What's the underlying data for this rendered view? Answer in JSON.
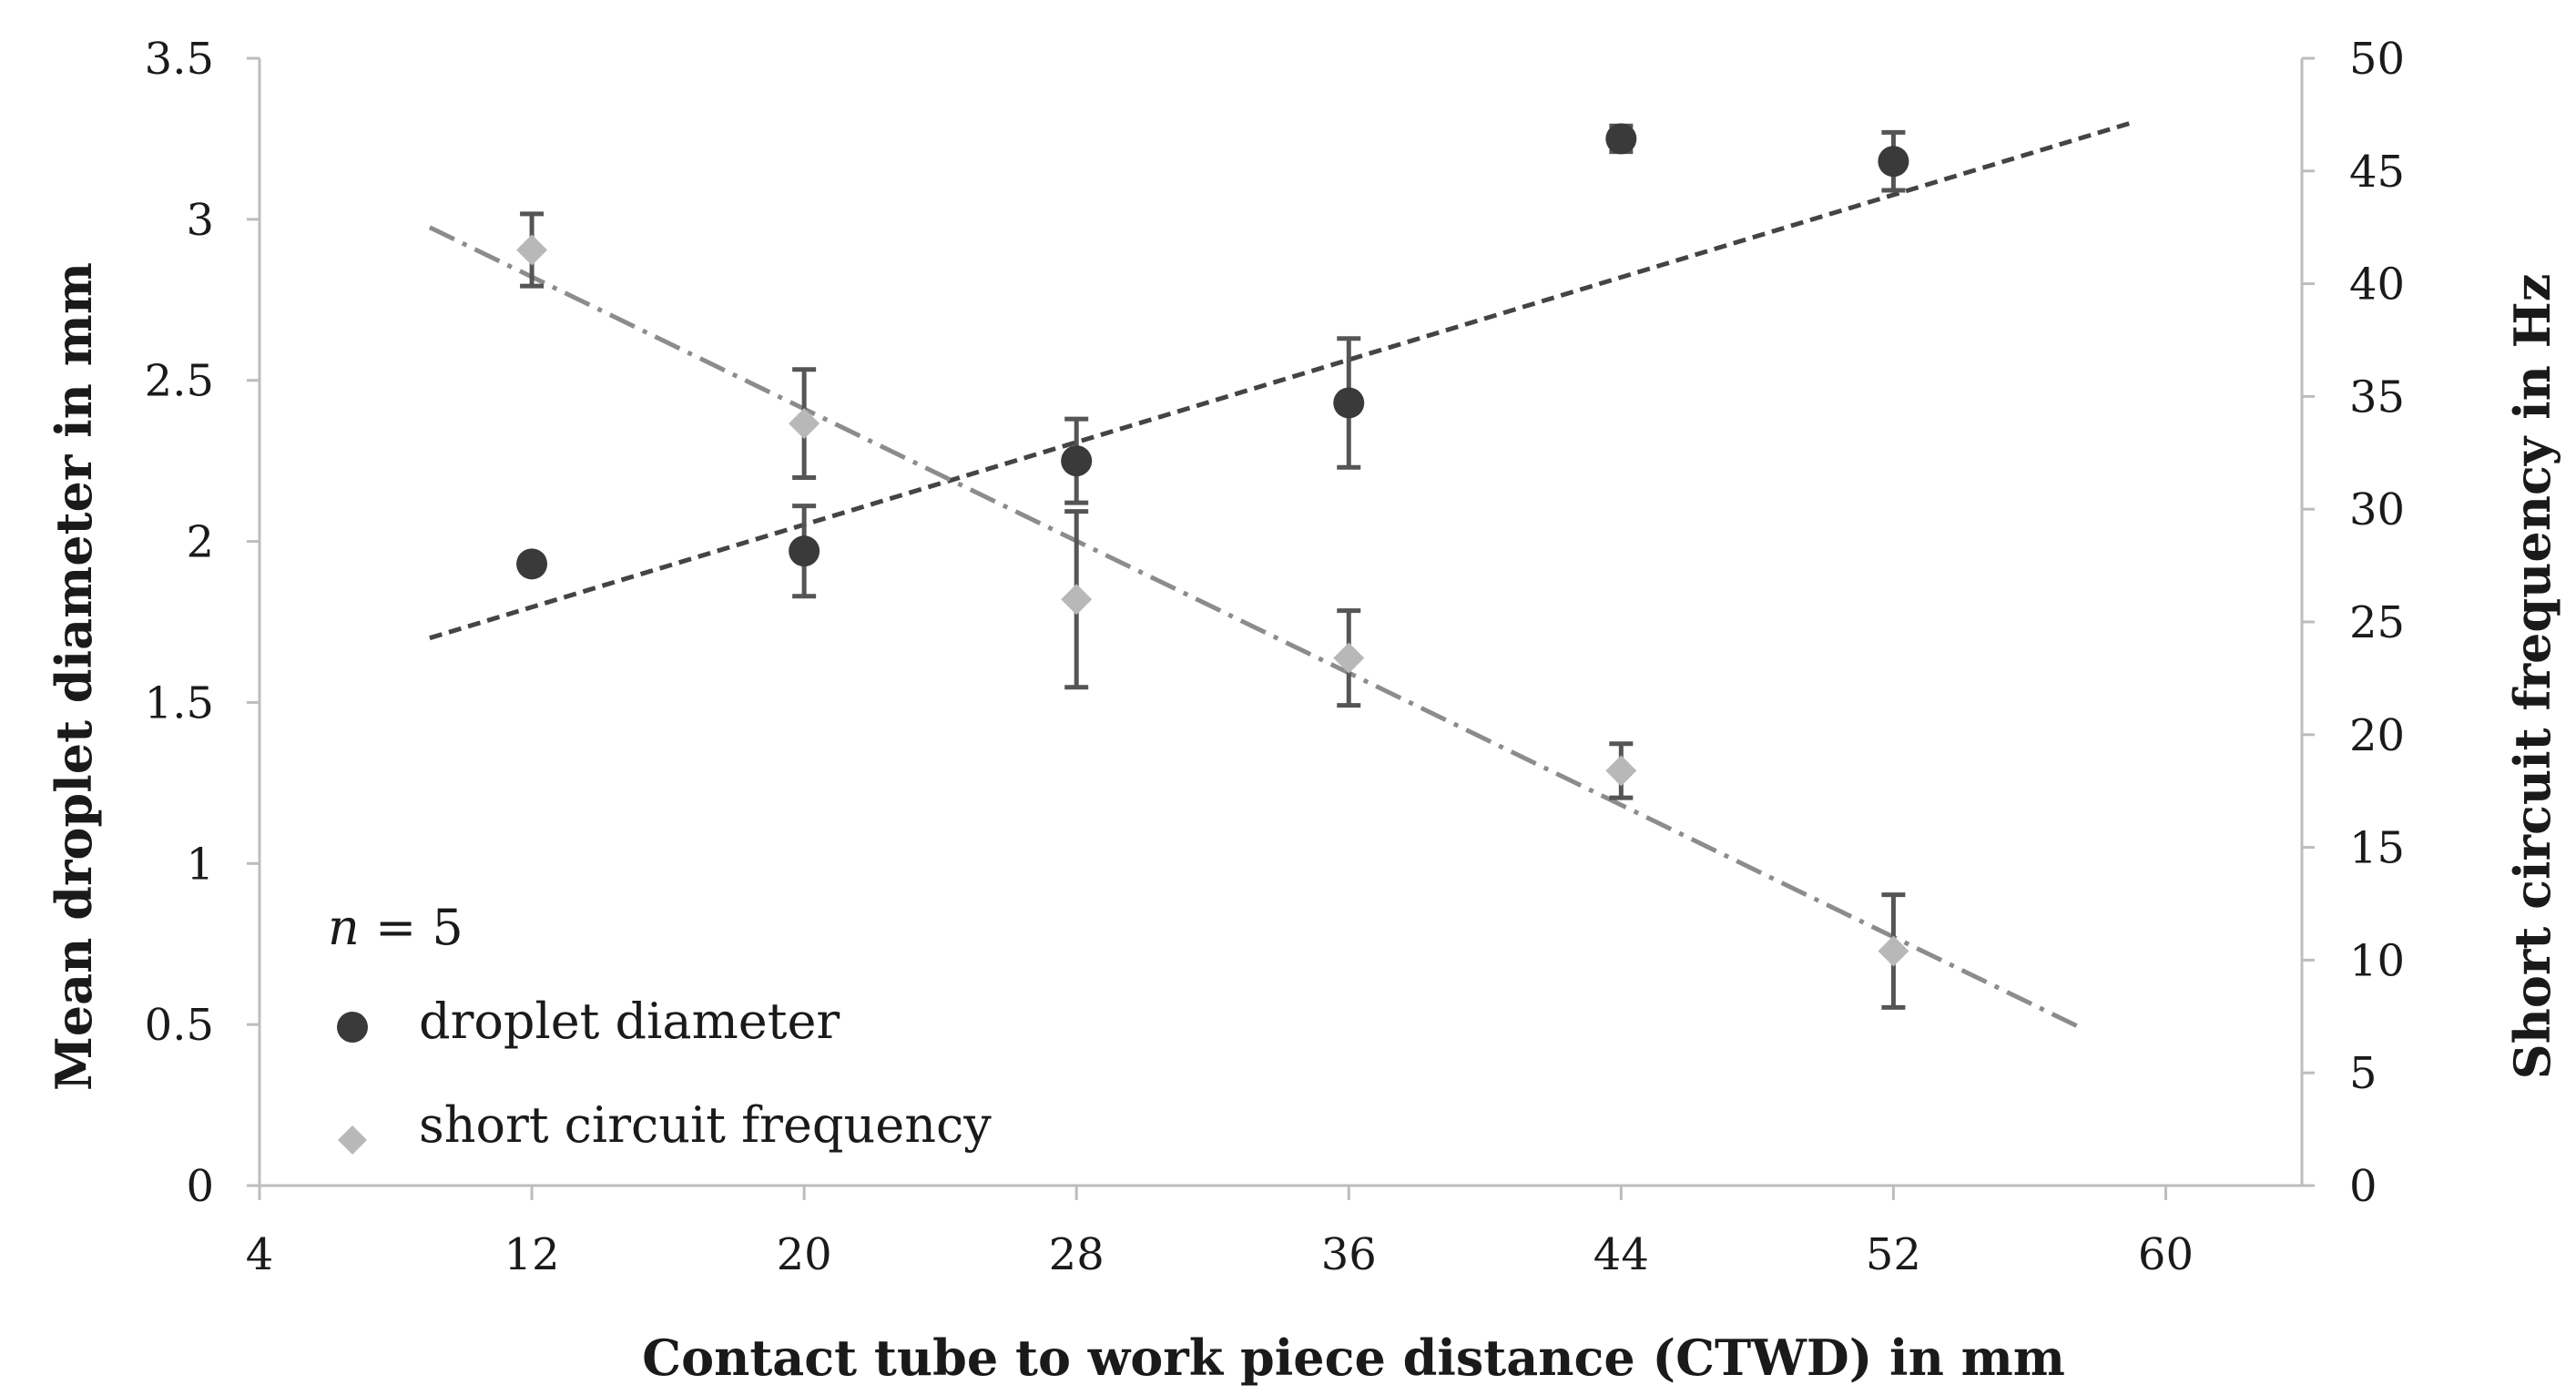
{
  "chart_data": {
    "type": "scatter",
    "title": "",
    "xlabel": "Contact tube to work piece distance (CTWD) in mm",
    "ylabel_left": "Mean droplet diameter in mm",
    "ylabel_right": "Short circuit frequency in Hz",
    "x_ticks": [
      "4",
      "12",
      "20",
      "28",
      "36",
      "44",
      "52",
      "60"
    ],
    "y_left_ticks": [
      "0",
      "0.5",
      "1",
      "1.5",
      "2",
      "2.5",
      "3",
      "3.5"
    ],
    "y_right_ticks": [
      "0",
      "5",
      "10",
      "15",
      "20",
      "25",
      "30",
      "35",
      "40",
      "45",
      "50"
    ],
    "xlim": [
      4,
      64
    ],
    "ylim_left": [
      0,
      3.5
    ],
    "ylim_right": [
      0,
      50
    ],
    "grid": false,
    "legend_position": "bottom-left",
    "annotation": {
      "italic": "n",
      "rest": " = 5"
    },
    "series": [
      {
        "name": "droplet diameter",
        "axis": "left",
        "marker": "circle",
        "color": "#3a3a3a",
        "x": [
          12,
          20,
          28,
          36,
          44,
          52
        ],
        "y": [
          1.93,
          1.97,
          2.25,
          2.43,
          3.25,
          3.18
        ],
        "err": [
          0.01,
          0.14,
          0.13,
          0.2,
          0.04,
          0.09
        ],
        "trendline": {
          "style": "dashed",
          "x": [
            9,
            59
          ],
          "y": [
            1.7,
            3.3
          ]
        }
      },
      {
        "name": "short circuit frequency",
        "axis": "right",
        "marker": "diamond",
        "color": "#b8b8b8",
        "x": [
          12,
          20,
          28,
          36,
          44,
          52
        ],
        "y": [
          41.5,
          33.8,
          26.0,
          23.4,
          18.4,
          10.4
        ],
        "err": [
          1.6,
          2.4,
          3.9,
          2.1,
          1.2,
          2.5
        ],
        "trendline": {
          "style": "dash-dot",
          "x": [
            9,
            57.5
          ],
          "y": [
            42.5,
            7.0
          ]
        }
      }
    ]
  }
}
